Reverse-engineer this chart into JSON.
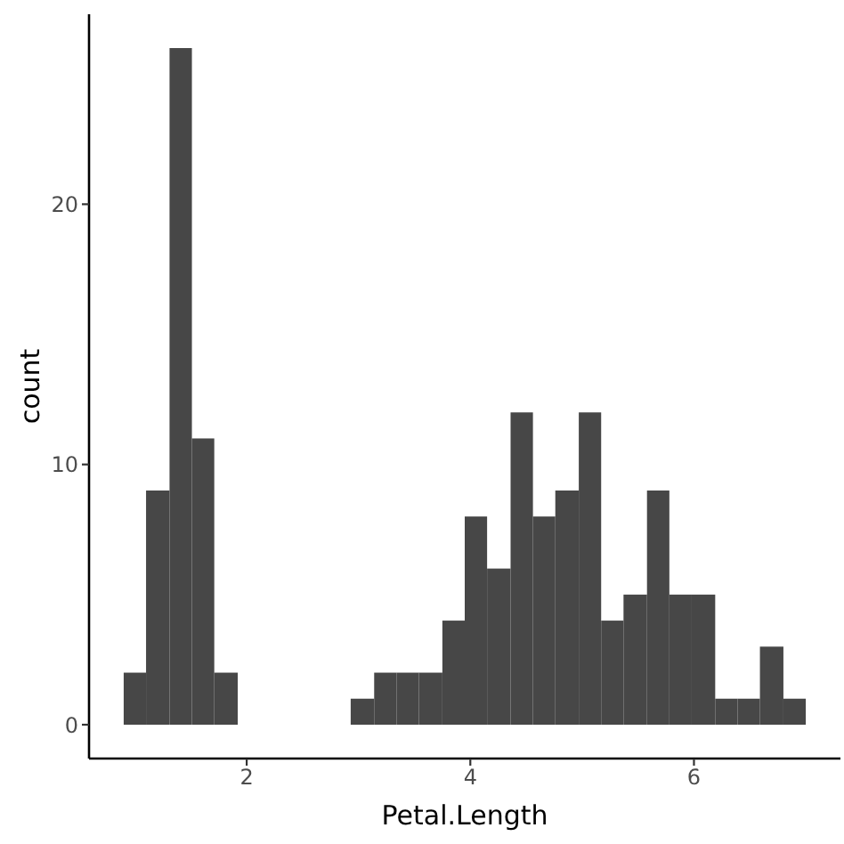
{
  "chart_data": {
    "type": "histogram",
    "xlabel": "Petal.Length",
    "ylabel": "count",
    "bins": [
      0.9,
      1.1,
      1.31,
      1.51,
      1.71,
      1.92,
      2.93,
      3.14,
      3.34,
      3.54,
      3.75,
      3.95,
      4.15,
      4.36,
      4.56,
      4.76,
      4.97,
      5.17,
      5.37,
      5.58,
      5.78,
      5.98,
      6.19,
      6.39,
      6.59,
      6.8,
      7.0
    ],
    "values": [
      2,
      9,
      26,
      11,
      2,
      0,
      1,
      2,
      2,
      2,
      4,
      8,
      6,
      12,
      8,
      9,
      12,
      4,
      5,
      9,
      5,
      5,
      1,
      1,
      3,
      1
    ],
    "color": "#474747",
    "xlim": [
      0.59,
      7.31
    ],
    "ylim": [
      -1.3,
      27.3
    ],
    "xticks": [
      2,
      4,
      6
    ],
    "yticks": [
      0,
      10,
      20
    ]
  }
}
